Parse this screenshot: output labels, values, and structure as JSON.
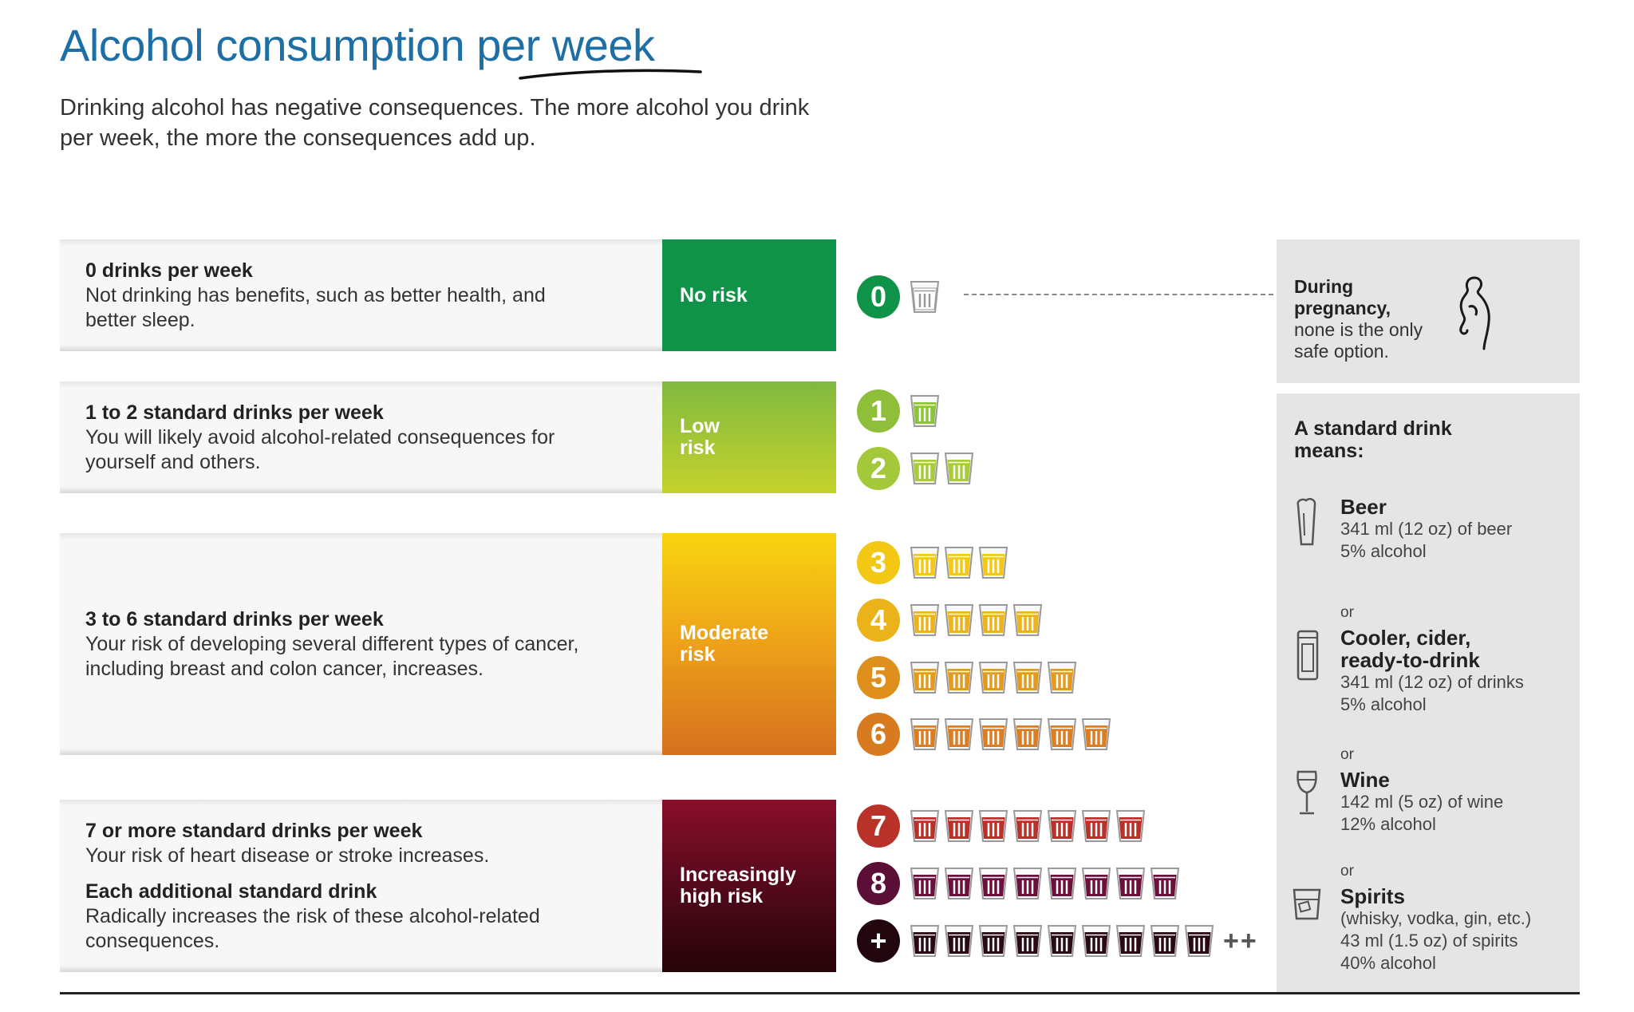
{
  "title_text": "Alcohol consumption per week",
  "intro": "Drinking alcohol has negative consequences. The more alcohol you drink per week, the more the consequences add up.",
  "rows": [
    {
      "heading": "0 drinks per week",
      "text": "Not drinking has benefits, such as better health, and better sleep.",
      "risk": "No risk",
      "color": "#0e9348"
    },
    {
      "heading": "1 to 2 standard drinks per week",
      "text": "You will likely avoid alcohol-related consequences for yourself and others.",
      "risk": "Low risk",
      "color": "#9bc43a"
    },
    {
      "heading": "3 to 6 standard drinks per week",
      "text": "Your risk of developing several different types of cancer, including breast and colon cancer, increases.",
      "risk": "Moderate risk",
      "color": "#f2b515"
    },
    {
      "heading": "7 or more standard drinks per week",
      "text": "Your risk of heart disease or stroke increases.",
      "heading2": "Each additional standard drink",
      "text2": "Radically increases the risk of these alcohol-related consequences.",
      "risk": "Increasingly high risk",
      "color": "#6b0a2a"
    }
  ],
  "levels": [
    {
      "label": "0",
      "count": 0,
      "circle": "#0e9348",
      "fill": "#ffffff",
      "rim": "#9a9a9a"
    },
    {
      "label": "1",
      "count": 1,
      "circle": "#8fbe3a",
      "fill": "#8cc43c",
      "rim": "#9a9a9a"
    },
    {
      "label": "2",
      "count": 2,
      "circle": "#a3c93a",
      "fill": "#a8cc3a",
      "rim": "#9a9a9a"
    },
    {
      "label": "3",
      "count": 3,
      "circle": "#f3c814",
      "fill": "#f5c817",
      "rim": "#9a9a9a"
    },
    {
      "label": "4",
      "count": 4,
      "circle": "#eab31a",
      "fill": "#edb21c",
      "rim": "#9a9a9a"
    },
    {
      "label": "5",
      "count": 5,
      "circle": "#de8f1c",
      "fill": "#e39a1e",
      "rim": "#9a9a9a"
    },
    {
      "label": "6",
      "count": 6,
      "circle": "#d77a20",
      "fill": "#dc7d22",
      "rim": "#9a9a9a"
    },
    {
      "label": "7",
      "count": 7,
      "circle": "#b8322a",
      "fill": "#b8322a",
      "rim": "#9a9a9a"
    },
    {
      "label": "8",
      "count": 8,
      "circle": "#5c0f36",
      "fill": "#6d0f3c",
      "rim": "#9a9a9a"
    },
    {
      "label": "+",
      "count": 9,
      "circle": "#22060e",
      "fill": "#2a0a12",
      "rim": "#9a9a9a",
      "suffix": "++"
    }
  ],
  "pregnancy": {
    "heading": "During pregnancy,",
    "text": "none is the only safe option.",
    "icon": "pregnant-woman-icon"
  },
  "standard": {
    "title": "A standard drink means:",
    "or": "or",
    "items": [
      {
        "name": "Beer",
        "line1": "341 ml (12 oz) of beer",
        "line2": "5% alcohol",
        "icon": "beer-mug-icon"
      },
      {
        "name": "Cooler, cider, ready-to-drink",
        "line1": "341 ml (12 oz) of drinks",
        "line2": "5% alcohol",
        "icon": "can-icon"
      },
      {
        "name": "Wine",
        "line1": "142 ml (5 oz) of wine",
        "line2": "12% alcohol",
        "icon": "wine-glass-icon"
      },
      {
        "name": "Spirits",
        "line0": "(whisky, vodka, gin, etc.)",
        "line1": "43 ml (1.5 oz) of spirits",
        "line2": "40% alcohol",
        "icon": "spirits-glass-icon"
      }
    ]
  }
}
